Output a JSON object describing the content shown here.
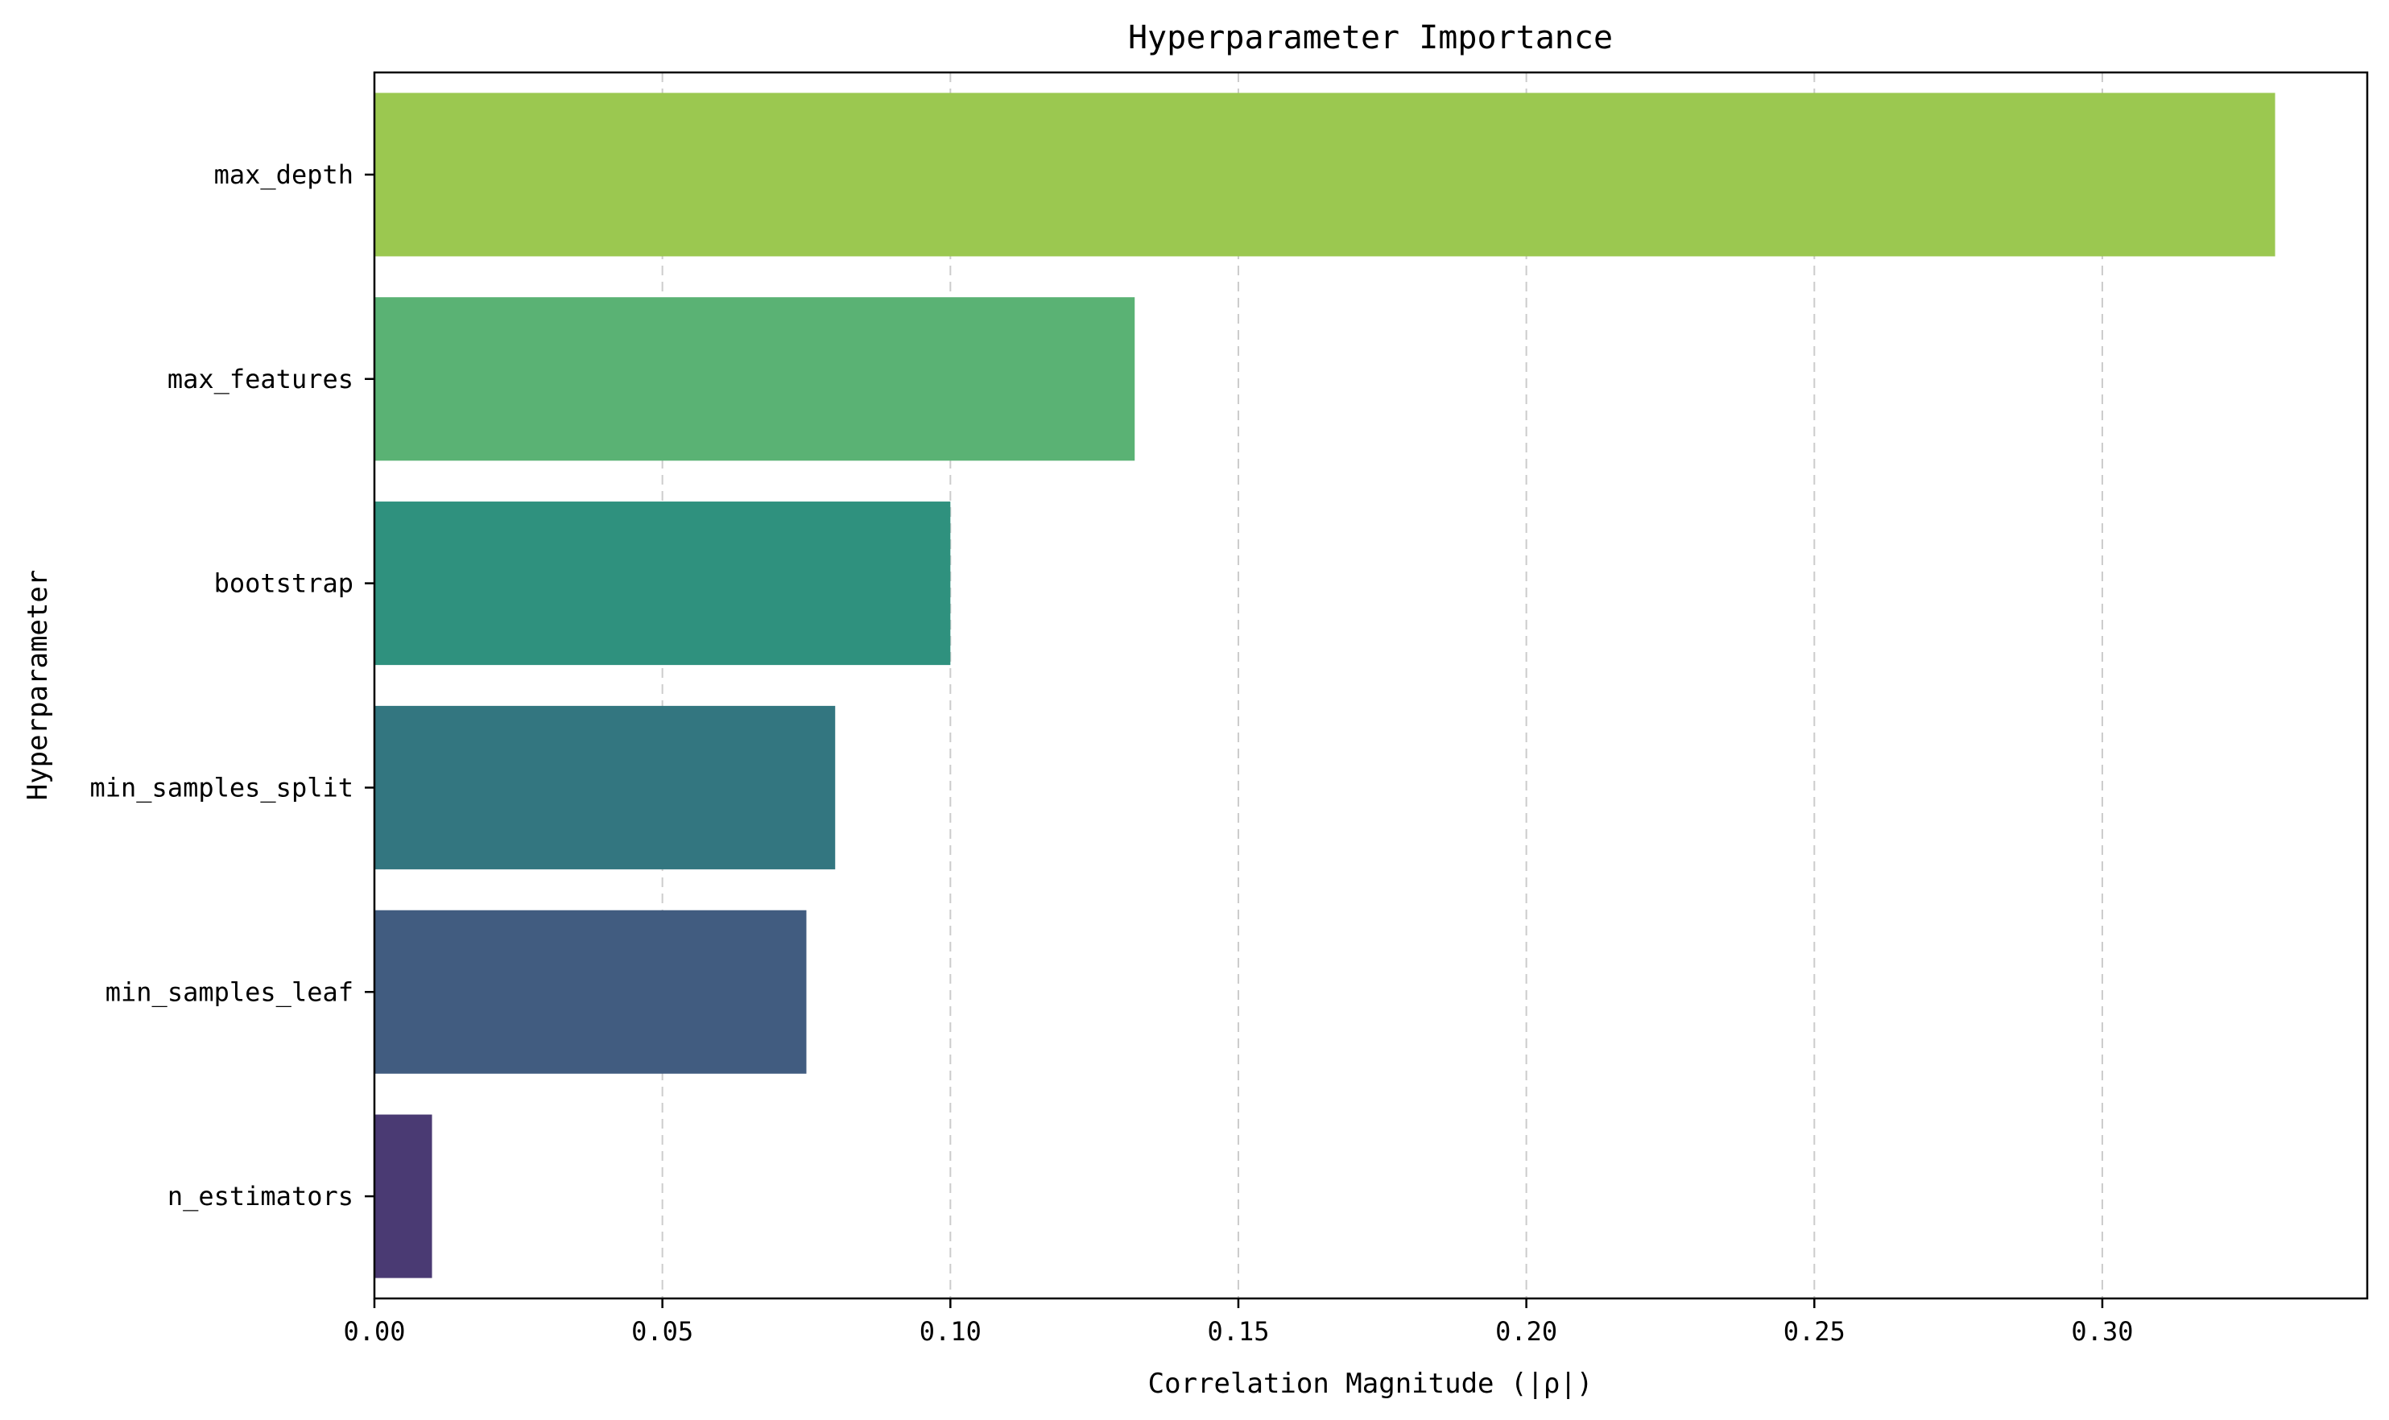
{
  "chart_data": {
    "type": "bar",
    "orientation": "horizontal",
    "title": "Hyperparameter Importance",
    "xlabel": "Correlation Magnitude (|ρ|)",
    "ylabel": "Hyperparameter",
    "categories": [
      "max_depth",
      "max_features",
      "bootstrap",
      "min_samples_split",
      "min_samples_leaf",
      "n_estimators"
    ],
    "values": [
      0.33,
      0.132,
      0.1,
      0.08,
      0.075,
      0.01
    ],
    "colors": [
      "#9bc850",
      "#5ab274",
      "#2f917e",
      "#337680",
      "#415c80",
      "#4a3a73"
    ],
    "xlim": [
      0,
      0.346
    ],
    "xticks": [
      0.0,
      0.05,
      0.1,
      0.15,
      0.2,
      0.25,
      0.3
    ],
    "xtick_labels": [
      "0.00",
      "0.05",
      "0.10",
      "0.15",
      "0.20",
      "0.25",
      "0.30"
    ],
    "grid": "x-dashed"
  }
}
